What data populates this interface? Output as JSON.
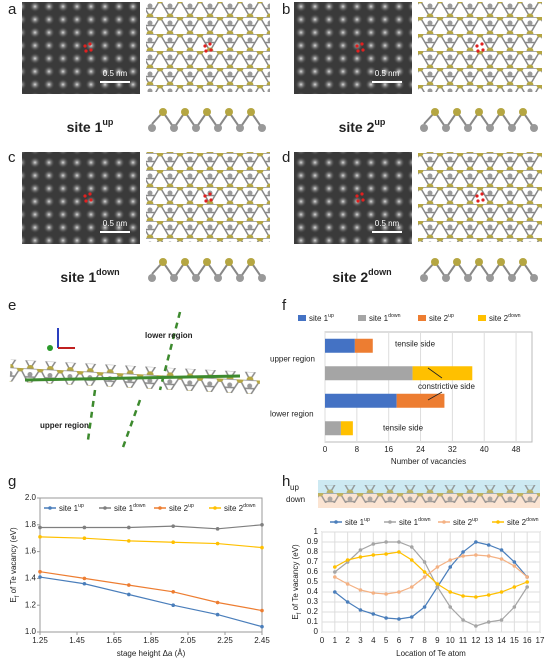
{
  "panel_labels": [
    "a",
    "b",
    "c",
    "d",
    "e",
    "f",
    "g",
    "h"
  ],
  "sites": [
    {
      "label": "site 1",
      "sup": "up",
      "scale": "0.5 nm"
    },
    {
      "label": "site 2",
      "sup": "up",
      "scale": "0.5 nm"
    },
    {
      "label": "site 1",
      "sup": "down",
      "scale": "0.5 nm"
    },
    {
      "label": "site 2",
      "sup": "down",
      "scale": "0.5 nm"
    }
  ],
  "panel_e": {
    "lower": "lower region",
    "upper": "upper region"
  },
  "panel_h_header": {
    "up": "up",
    "down": "down"
  },
  "chart_data": [
    {
      "type": "barh",
      "categories": [
        null,
        null,
        null,
        null
      ],
      "groups": [
        "upper region",
        "lower region"
      ],
      "series": [
        {
          "name": "site 1",
          "name_sup": "up",
          "color": "#4472c4",
          "values": [
            7.5,
            null,
            18,
            null
          ]
        },
        {
          "name": "site 1",
          "name_sup": "down",
          "color": "#a5a5a5",
          "values": [
            null,
            22,
            null,
            4
          ]
        },
        {
          "name": "site 2",
          "name_sup": "up",
          "color": "#ed7d31",
          "values": [
            4.5,
            null,
            12,
            null
          ]
        },
        {
          "name": "site 2",
          "name_sup": "down",
          "color": "#ffc000",
          "values": [
            null,
            15,
            null,
            3
          ]
        }
      ],
      "annotations": [
        "tensile side",
        "constrictive side",
        "tensile side"
      ],
      "xlabel": "Number of vacancies",
      "xlim": [
        0,
        52
      ],
      "xticks": [
        0,
        8,
        16,
        24,
        32,
        40,
        48
      ],
      "grid": true
    },
    {
      "type": "line",
      "x": [
        1.25,
        1.49,
        1.73,
        1.97,
        2.21,
        2.45
      ],
      "series": [
        {
          "name": "site 1",
          "name_sup": "up",
          "color": "#4a7ebb",
          "values": [
            1.41,
            1.36,
            1.28,
            1.2,
            1.13,
            1.04
          ]
        },
        {
          "name": "site 1",
          "name_sup": "down",
          "color": "#7f7f7f",
          "values": [
            1.78,
            1.78,
            1.78,
            1.79,
            1.77,
            1.8
          ]
        },
        {
          "name": "site 2",
          "name_sup": "up",
          "color": "#ed7d31",
          "values": [
            1.45,
            1.4,
            1.35,
            1.3,
            1.22,
            1.16
          ]
        },
        {
          "name": "site 2",
          "name_sup": "down",
          "color": "#ffc000",
          "values": [
            1.71,
            1.7,
            1.68,
            1.67,
            1.66,
            1.63
          ]
        }
      ],
      "xlabel": "stage height Δa (Å)",
      "ylabel": "E",
      "ylabel_sub": "f",
      "ylabel_rest": " of Te vacancy (eV)",
      "xlim": [
        1.25,
        2.45
      ],
      "xticks": [
        1.25,
        1.45,
        1.65,
        1.85,
        2.05,
        2.25,
        2.45
      ],
      "ylim": [
        1,
        2
      ],
      "yticks": [
        {
          "value": 1,
          "label": "1.0"
        },
        1.2,
        1.4,
        1.6,
        1.8,
        {
          "value": 2,
          "label": "2.0"
        }
      ],
      "grid": false
    },
    {
      "type": "line",
      "x": [
        1,
        2,
        3,
        4,
        5,
        6,
        7,
        8,
        9,
        10,
        11,
        12,
        13,
        14,
        15,
        16
      ],
      "series": [
        {
          "name": "site 1",
          "name_sup": "up",
          "color": "#4a7ebb",
          "values": [
            0.4,
            0.3,
            0.22,
            0.18,
            0.14,
            0.13,
            0.15,
            0.25,
            0.45,
            0.65,
            0.8,
            0.9,
            0.87,
            0.82,
            0.7,
            0.55
          ]
        },
        {
          "name": "site 1",
          "name_sup": "down",
          "color": "#a5a5a5",
          "values": [
            0.6,
            0.7,
            0.82,
            0.88,
            0.9,
            0.9,
            0.85,
            0.7,
            0.45,
            0.25,
            0.12,
            0.06,
            0.1,
            0.12,
            0.25,
            0.45
          ]
        },
        {
          "name": "site 2",
          "name_sup": "up",
          "color": "#f4b183",
          "values": [
            0.55,
            0.48,
            0.42,
            0.39,
            0.38,
            0.4,
            0.45,
            0.55,
            0.65,
            0.72,
            0.76,
            0.77,
            0.76,
            0.73,
            0.66,
            0.55
          ]
        },
        {
          "name": "site 2",
          "name_sup": "down",
          "color": "#ffc000",
          "values": [
            0.65,
            0.72,
            0.75,
            0.77,
            0.78,
            0.8,
            0.72,
            0.6,
            0.48,
            0.4,
            0.36,
            0.35,
            0.37,
            0.4,
            0.45,
            0.5
          ]
        }
      ],
      "xlabel": "Location of Te atom",
      "ylabel": "E",
      "ylabel_sub": "f",
      "ylabel_rest": " of Te vacancy (eV)",
      "xlim": [
        0,
        17
      ],
      "xticks": [
        0,
        1,
        2,
        3,
        4,
        5,
        6,
        7,
        8,
        9,
        10,
        11,
        12,
        13,
        14,
        15,
        16,
        17
      ],
      "ylim": [
        0,
        1
      ],
      "yticks": [
        0,
        0.1,
        0.2,
        0.3,
        0.4,
        0.5,
        0.6,
        0.7,
        0.8,
        0.9,
        1
      ],
      "grid": true
    }
  ]
}
